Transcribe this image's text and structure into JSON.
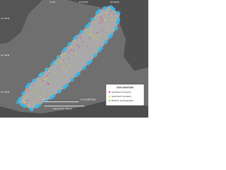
{
  "map": {
    "lon_labels": [
      "71°W",
      "70°50'W",
      "70°40'W"
    ],
    "lat_labels": [
      "41°40'N",
      "41°30'N",
      "41°20'N"
    ],
    "scale": {
      "km": "5 KILOMETERS",
      "nmi": "5 NAUTICAL MILES",
      "zero": "0"
    },
    "legend": {
      "title": "EXPLANATION",
      "items": [
        "Sediment analysis",
        "Sediment samples",
        "Bottom photographs"
      ]
    }
  }
}
